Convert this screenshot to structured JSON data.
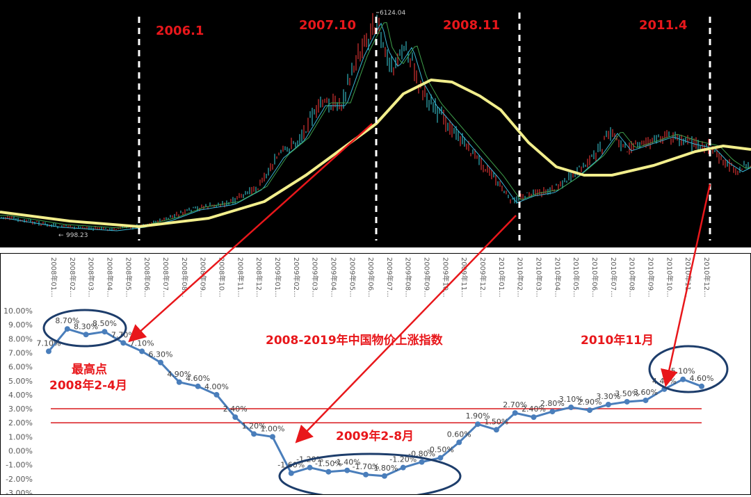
{
  "top_chart": {
    "peak_label": "6124.04",
    "low_label": "998.23",
    "period_labels": [
      "2006.1",
      "2007.10",
      "2008.11",
      "2011.4"
    ],
    "colors": {
      "background": "#000000",
      "ma_long": "#f2ee8c",
      "ma_cyan": "#39b6d6",
      "ma_green": "#3fa04c",
      "divider": "#ffffff",
      "annotation": "#e8171b"
    }
  },
  "chart_data": {
    "type": "line",
    "title": "2008-2019年中国物价上涨指数",
    "x": [
      "2008年01...",
      "2008年02...",
      "2008年03...",
      "2008年04...",
      "2008年05...",
      "2008年06...",
      "2008年07...",
      "2008年08...",
      "2008年09...",
      "2008年10...",
      "2008年11...",
      "2008年12...",
      "2009年01...",
      "2009年02...",
      "2009年03...",
      "2009年04...",
      "2009年05...",
      "2009年06...",
      "2009年07...",
      "2009年08...",
      "2009年09...",
      "2009年10...",
      "2009年11...",
      "2009年12...",
      "2010年01...",
      "2010年02...",
      "2010年03...",
      "2010年04...",
      "2010年05...",
      "2010年06...",
      "2010年07...",
      "2010年08...",
      "2010年09...",
      "2010年10...",
      "2010年11...",
      "2010年12..."
    ],
    "values": [
      7.1,
      8.7,
      8.3,
      8.5,
      7.7,
      7.1,
      6.3,
      4.9,
      4.6,
      4.0,
      2.4,
      1.2,
      1.0,
      -1.6,
      -1.2,
      -1.5,
      -1.4,
      -1.7,
      -1.8,
      -1.2,
      -0.8,
      -0.5,
      0.6,
      1.9,
      1.5,
      2.7,
      2.4,
      2.8,
      3.1,
      2.9,
      3.3,
      3.5,
      3.6,
      4.4,
      5.1,
      4.6
    ],
    "point_labels": [
      "7.10%",
      "8.70%",
      "8.30%",
      "8.50%",
      "7.70%",
      "7.10%",
      "6.30%",
      "4.90%",
      "4.60%",
      "4.00%",
      "2.40%",
      "1.20%",
      "1.00%",
      "-1.60%",
      "-1.20%",
      "-1.50%",
      "-1.40%",
      "-1.70%",
      "-1.80%",
      "-1.20%",
      "-0.80%",
      "-0.50%",
      "0.60%",
      "1.90%",
      "1.50%",
      "2.70%",
      "2.40%",
      "2.80%",
      "3.10%",
      "2.90%",
      "3.30%",
      "3.50%",
      "3.60%",
      "4.40%",
      "5.10%",
      "4.60%"
    ],
    "y_ticks": [
      "10.00%",
      "9.00%",
      "8.00%",
      "7.00%",
      "6.00%",
      "5.00%",
      "4.00%",
      "3.00%",
      "2.00%",
      "1.00%",
      "0.00%",
      "-1.00%",
      "-2.00%",
      "-3.00%"
    ],
    "ylim": [
      -3,
      10
    ],
    "reference_lines": [
      3.0,
      2.0
    ],
    "line_color": "#4a7ebb",
    "ref_line_color": "#d9181c"
  },
  "annotations": {
    "highest": "最高点",
    "highest_period": "2008年2-4月",
    "low_period": "2009年2-8月",
    "late_period": "2010年11月"
  }
}
